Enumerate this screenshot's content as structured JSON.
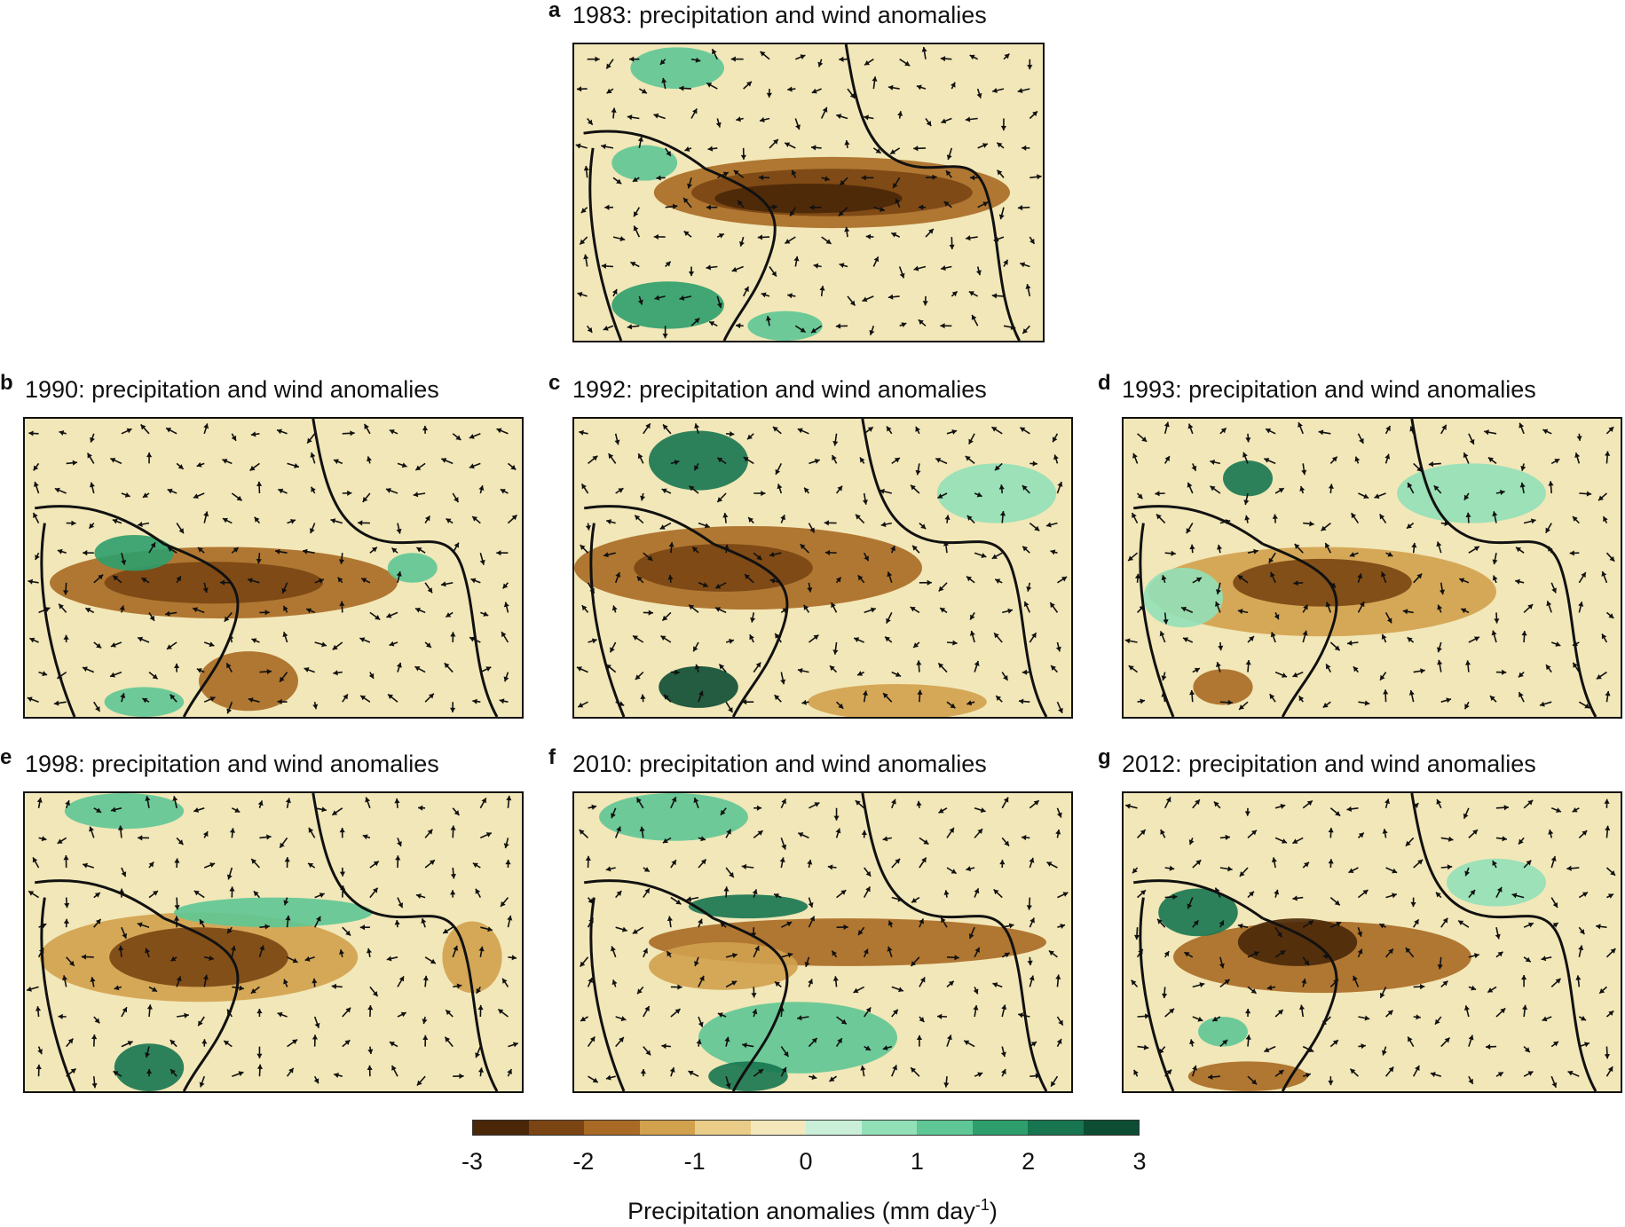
{
  "panels": [
    {
      "letter": "a",
      "title": "1983: precipitation and wind anomalies"
    },
    {
      "letter": "b",
      "title": "1990: precipitation and wind anomalies"
    },
    {
      "letter": "c",
      "title": "1992: precipitation and wind anomalies"
    },
    {
      "letter": "d",
      "title": "1993: precipitation and wind anomalies"
    },
    {
      "letter": "e",
      "title": "1998: precipitation and wind anomalies"
    },
    {
      "letter": "f",
      "title": "2010: precipitation and wind anomalies"
    },
    {
      "letter": "g",
      "title": "2012: precipitation and wind anomalies"
    }
  ],
  "colorbar": {
    "colors": [
      "#4a2708",
      "#7a4512",
      "#a86a24",
      "#d1a14e",
      "#e8cc88",
      "#f3e8bb",
      "#c9efd9",
      "#92e0b8",
      "#5ec795",
      "#2e9e6c",
      "#177550",
      "#0c4d33"
    ],
    "ticks": [
      "-3",
      "-2",
      "-1",
      "0",
      "1",
      "2",
      "3"
    ],
    "label_main": "Precipitation anomalies (mm day",
    "label_sup": "-1",
    "label_end": ")"
  }
}
